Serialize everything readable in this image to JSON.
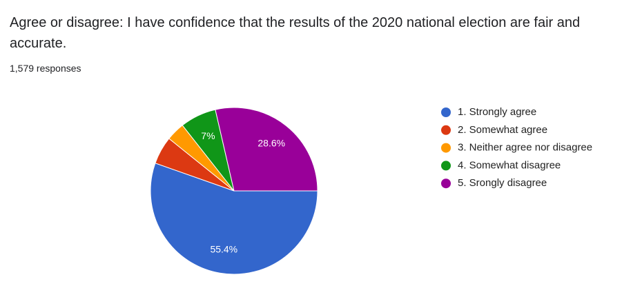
{
  "chart_data": {
    "type": "pie",
    "title": "Agree or disagree: I have confidence that the results of the 2020 national election are fair and accurate.",
    "subtitle": "1,579 responses",
    "categories": [
      "1. Strongly agree",
      "2. Somewhat agree",
      "3. Neither agree nor disagree",
      "4. Somewhat disagree",
      "5. Srongly disagree"
    ],
    "values": [
      55.4,
      5.4,
      3.6,
      7,
      28.6
    ],
    "value_labels": [
      "55.4%",
      null,
      null,
      "7%",
      "28.6%"
    ],
    "colors": [
      "#3366cc",
      "#dc3912",
      "#ff9900",
      "#109618",
      "#990099"
    ],
    "legend": "right"
  }
}
